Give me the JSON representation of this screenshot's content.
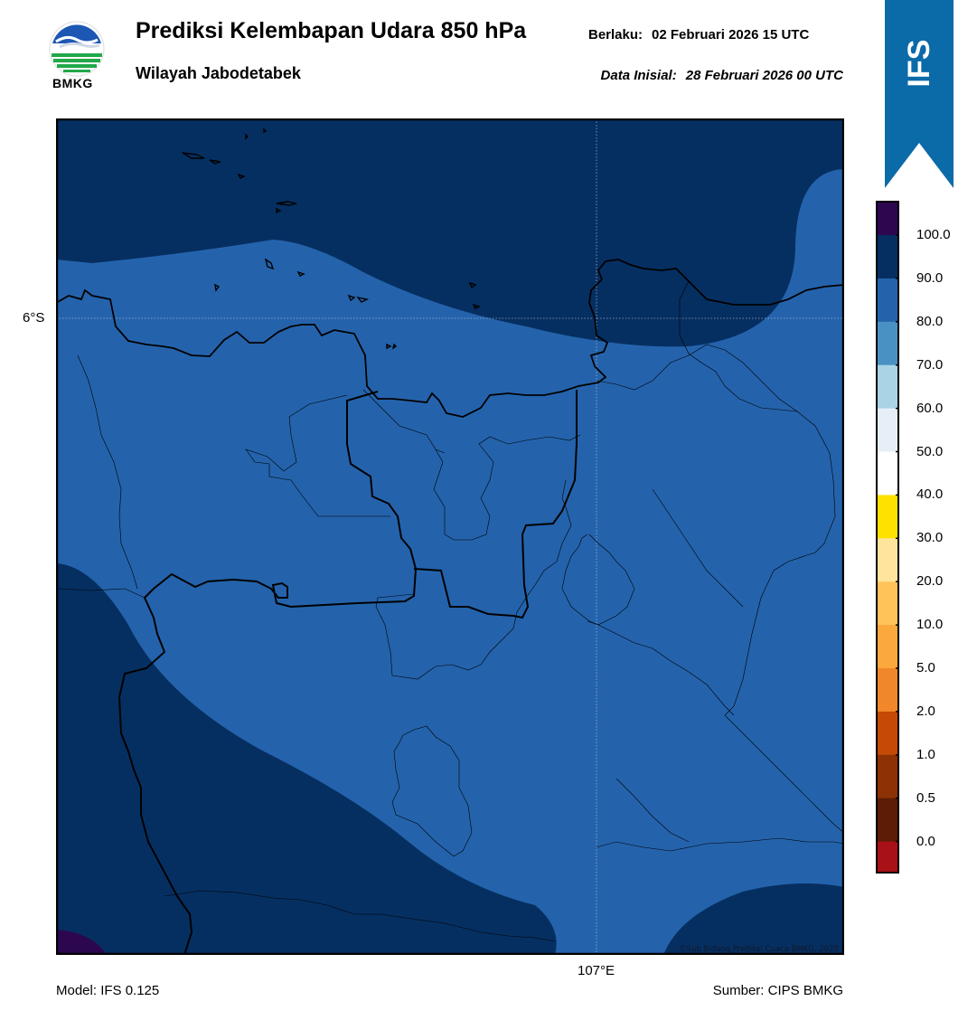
{
  "header": {
    "title": "Prediksi Kelembapan Udara 850 hPa",
    "subtitle": "Wilayah Jabodetabek",
    "valid_label": "Berlaku:",
    "valid_value": "02 Februari 2026 15 UTC",
    "init_label": "Data Inisial:",
    "init_value": "28 Februari 2026 00 UTC"
  },
  "logo": {
    "name": "bmkg-logo",
    "text": "BMKG"
  },
  "banner": {
    "text": "IFS",
    "color": "#0b6aa8"
  },
  "map": {
    "lat_label": "6°S",
    "lon_label": "107°E",
    "credit": "©Sub Bidang Prediksi Cuaca BMKG, 2020",
    "fill_colors": {
      "band_80_90": "#2463ac",
      "band_90_100": "#062f61",
      "band_above_100": "#2c0750"
    }
  },
  "colorbar": {
    "labels": [
      "100.0",
      "90.0",
      "80.0",
      "70.0",
      "60.0",
      "50.0",
      "40.0",
      "30.0",
      "20.0",
      "10.0",
      "5.0",
      "2.0",
      "1.0",
      "0.5",
      "0.0"
    ],
    "colors_top_to_bottom": [
      "#2c0750",
      "#062f61",
      "#2463ac",
      "#4a91c3",
      "#a8d4e6",
      "#e6eff8",
      "#ffffff",
      "#ffe100",
      "#ffe49c",
      "#ffc35a",
      "#fba83c",
      "#f0872a",
      "#c44a06",
      "#8c3204",
      "#5c1c06",
      "#a81116",
      "#e93b35"
    ]
  },
  "footer": {
    "model": "Model: IFS 0.125",
    "source": "Sumber: CIPS BMKG"
  }
}
